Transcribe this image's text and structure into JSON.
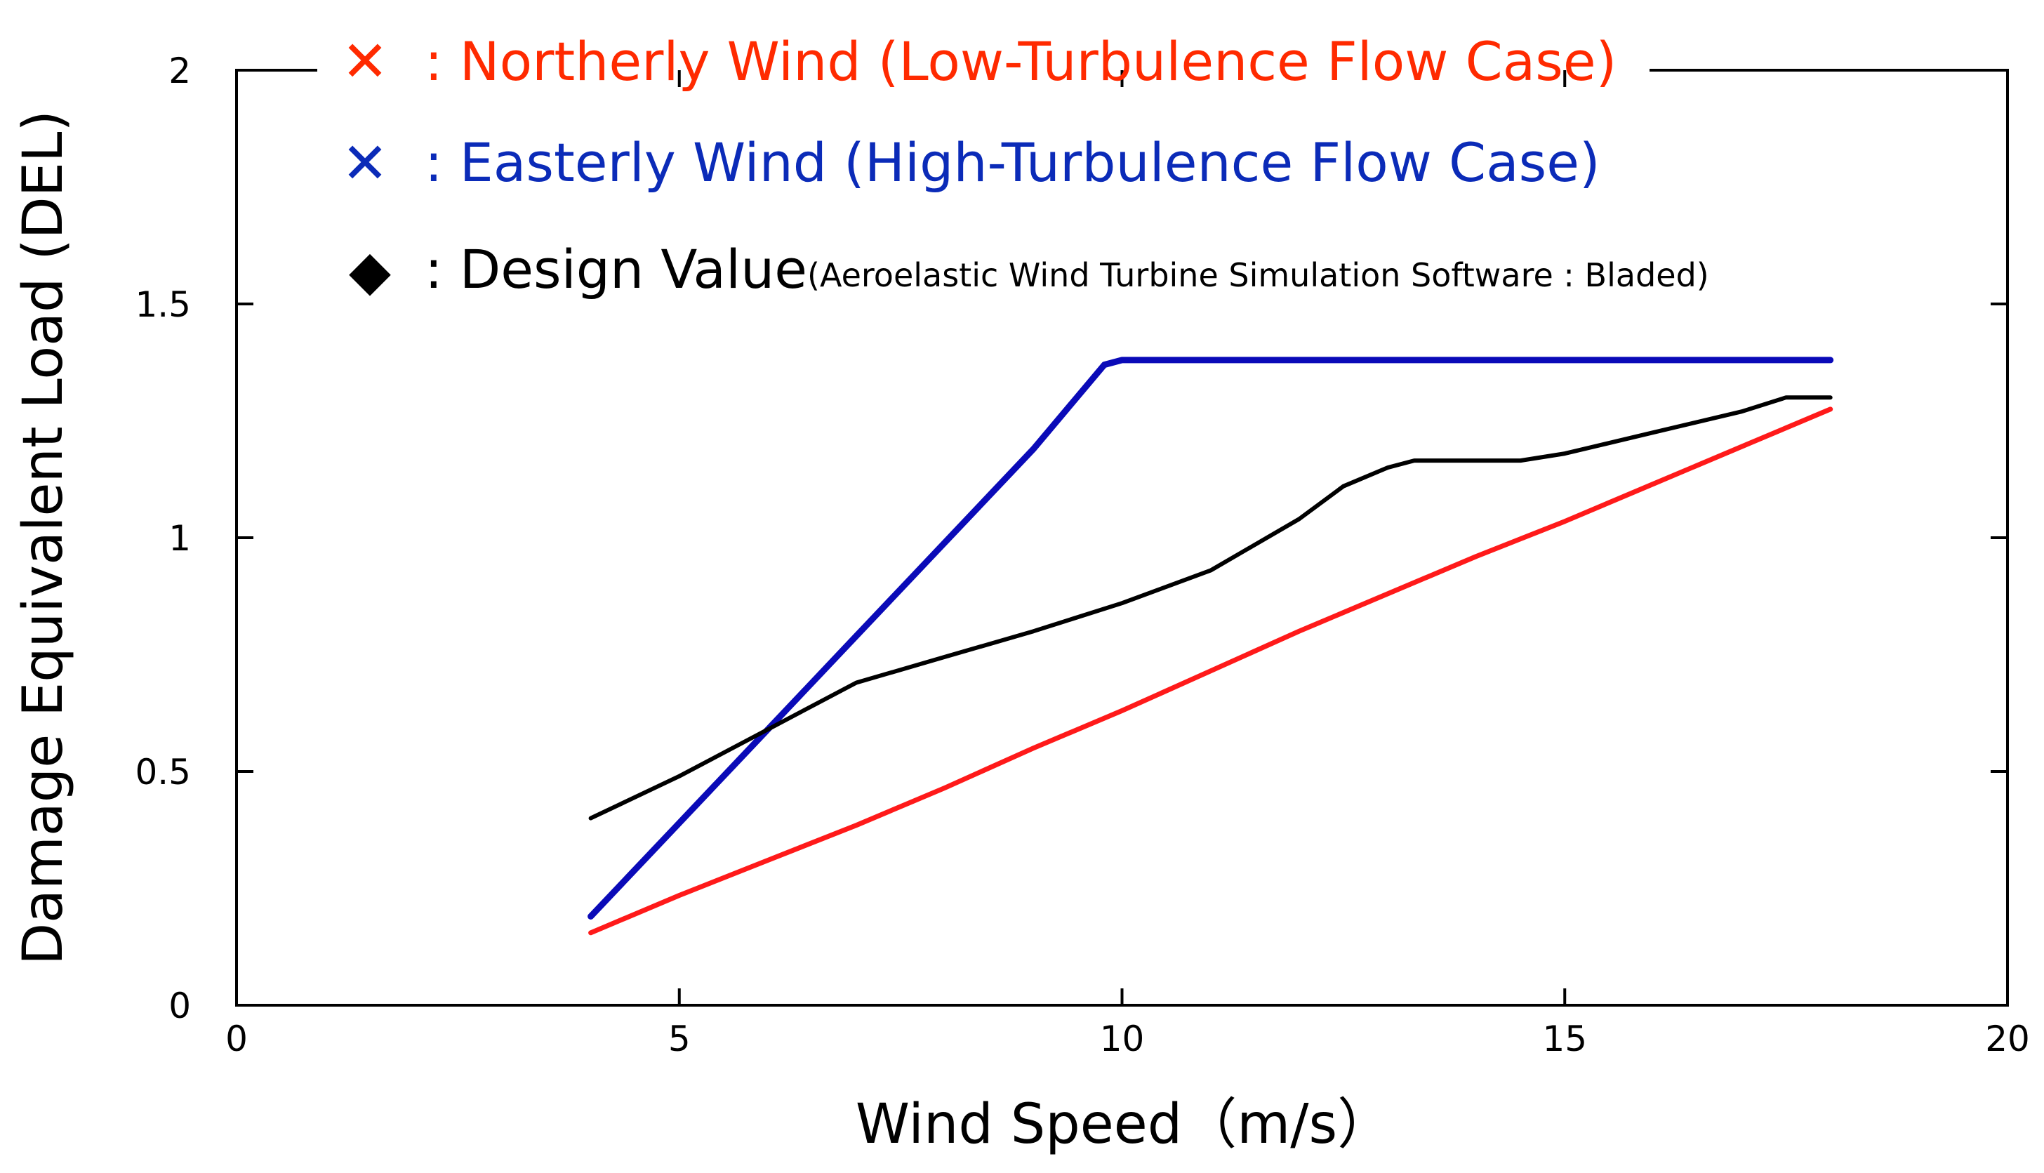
{
  "chart_data": {
    "type": "line",
    "xlabel": "Wind Speed（m/s）",
    "ylabel": "Damage Equivalent Load (DEL)",
    "xlim": [
      0,
      20
    ],
    "ylim": [
      0,
      2
    ],
    "xticks": [
      "0",
      "5",
      "10",
      "15",
      "20"
    ],
    "yticks": [
      "0",
      "0.5",
      "1",
      "1.5",
      "2"
    ],
    "xtick_values": [
      0,
      5,
      10,
      15,
      20
    ],
    "ytick_values": [
      0,
      0.5,
      1,
      1.5,
      2
    ],
    "grid": false,
    "legend_position": "top-left",
    "series": [
      {
        "name": "Northerly Wind (Low-Turbulence Flow Case)",
        "marker": "✕",
        "legend_label": ": Northerly Wind (Low-Turbulence Flow Case)",
        "color": "#ff1a1a",
        "legend_color": "#ff2a00",
        "x": [
          4,
          5,
          6,
          7,
          8,
          9,
          10,
          11,
          12,
          13,
          14,
          15,
          16,
          17,
          18
        ],
        "y": [
          0.155,
          0.235,
          0.31,
          0.385,
          0.465,
          0.55,
          0.63,
          0.715,
          0.8,
          0.88,
          0.96,
          1.035,
          1.115,
          1.195,
          1.275
        ]
      },
      {
        "name": "Easterly Wind (High-Turbulence Flow Case)",
        "marker": "✕",
        "legend_label": ": Easterly Wind (High-Turbulence Flow Case)",
        "color": "#0a0ab8",
        "legend_color": "#0b2bb8",
        "x": [
          4,
          5,
          6,
          7,
          8,
          9,
          9.8,
          10,
          11,
          12,
          13,
          14,
          15,
          16,
          17,
          18
        ],
        "y": [
          0.19,
          0.39,
          0.59,
          0.79,
          0.99,
          1.19,
          1.37,
          1.38,
          1.38,
          1.38,
          1.38,
          1.38,
          1.38,
          1.38,
          1.38,
          1.38
        ]
      },
      {
        "name": "Design Value",
        "marker": "◆",
        "legend_label": ": Design Value",
        "legend_note": "(Aeroelastic Wind Turbine Simulation Software : Bladed)",
        "color": "#000000",
        "legend_color": "#000000",
        "x": [
          4,
          5,
          6,
          7,
          8,
          9,
          10,
          11,
          12,
          12.5,
          13,
          13.3,
          14.5,
          15,
          16,
          17,
          17.5,
          18
        ],
        "y": [
          0.4,
          0.49,
          0.59,
          0.69,
          0.745,
          0.8,
          0.86,
          0.93,
          1.04,
          1.11,
          1.15,
          1.165,
          1.165,
          1.18,
          1.225,
          1.27,
          1.3,
          1.3
        ]
      }
    ]
  }
}
